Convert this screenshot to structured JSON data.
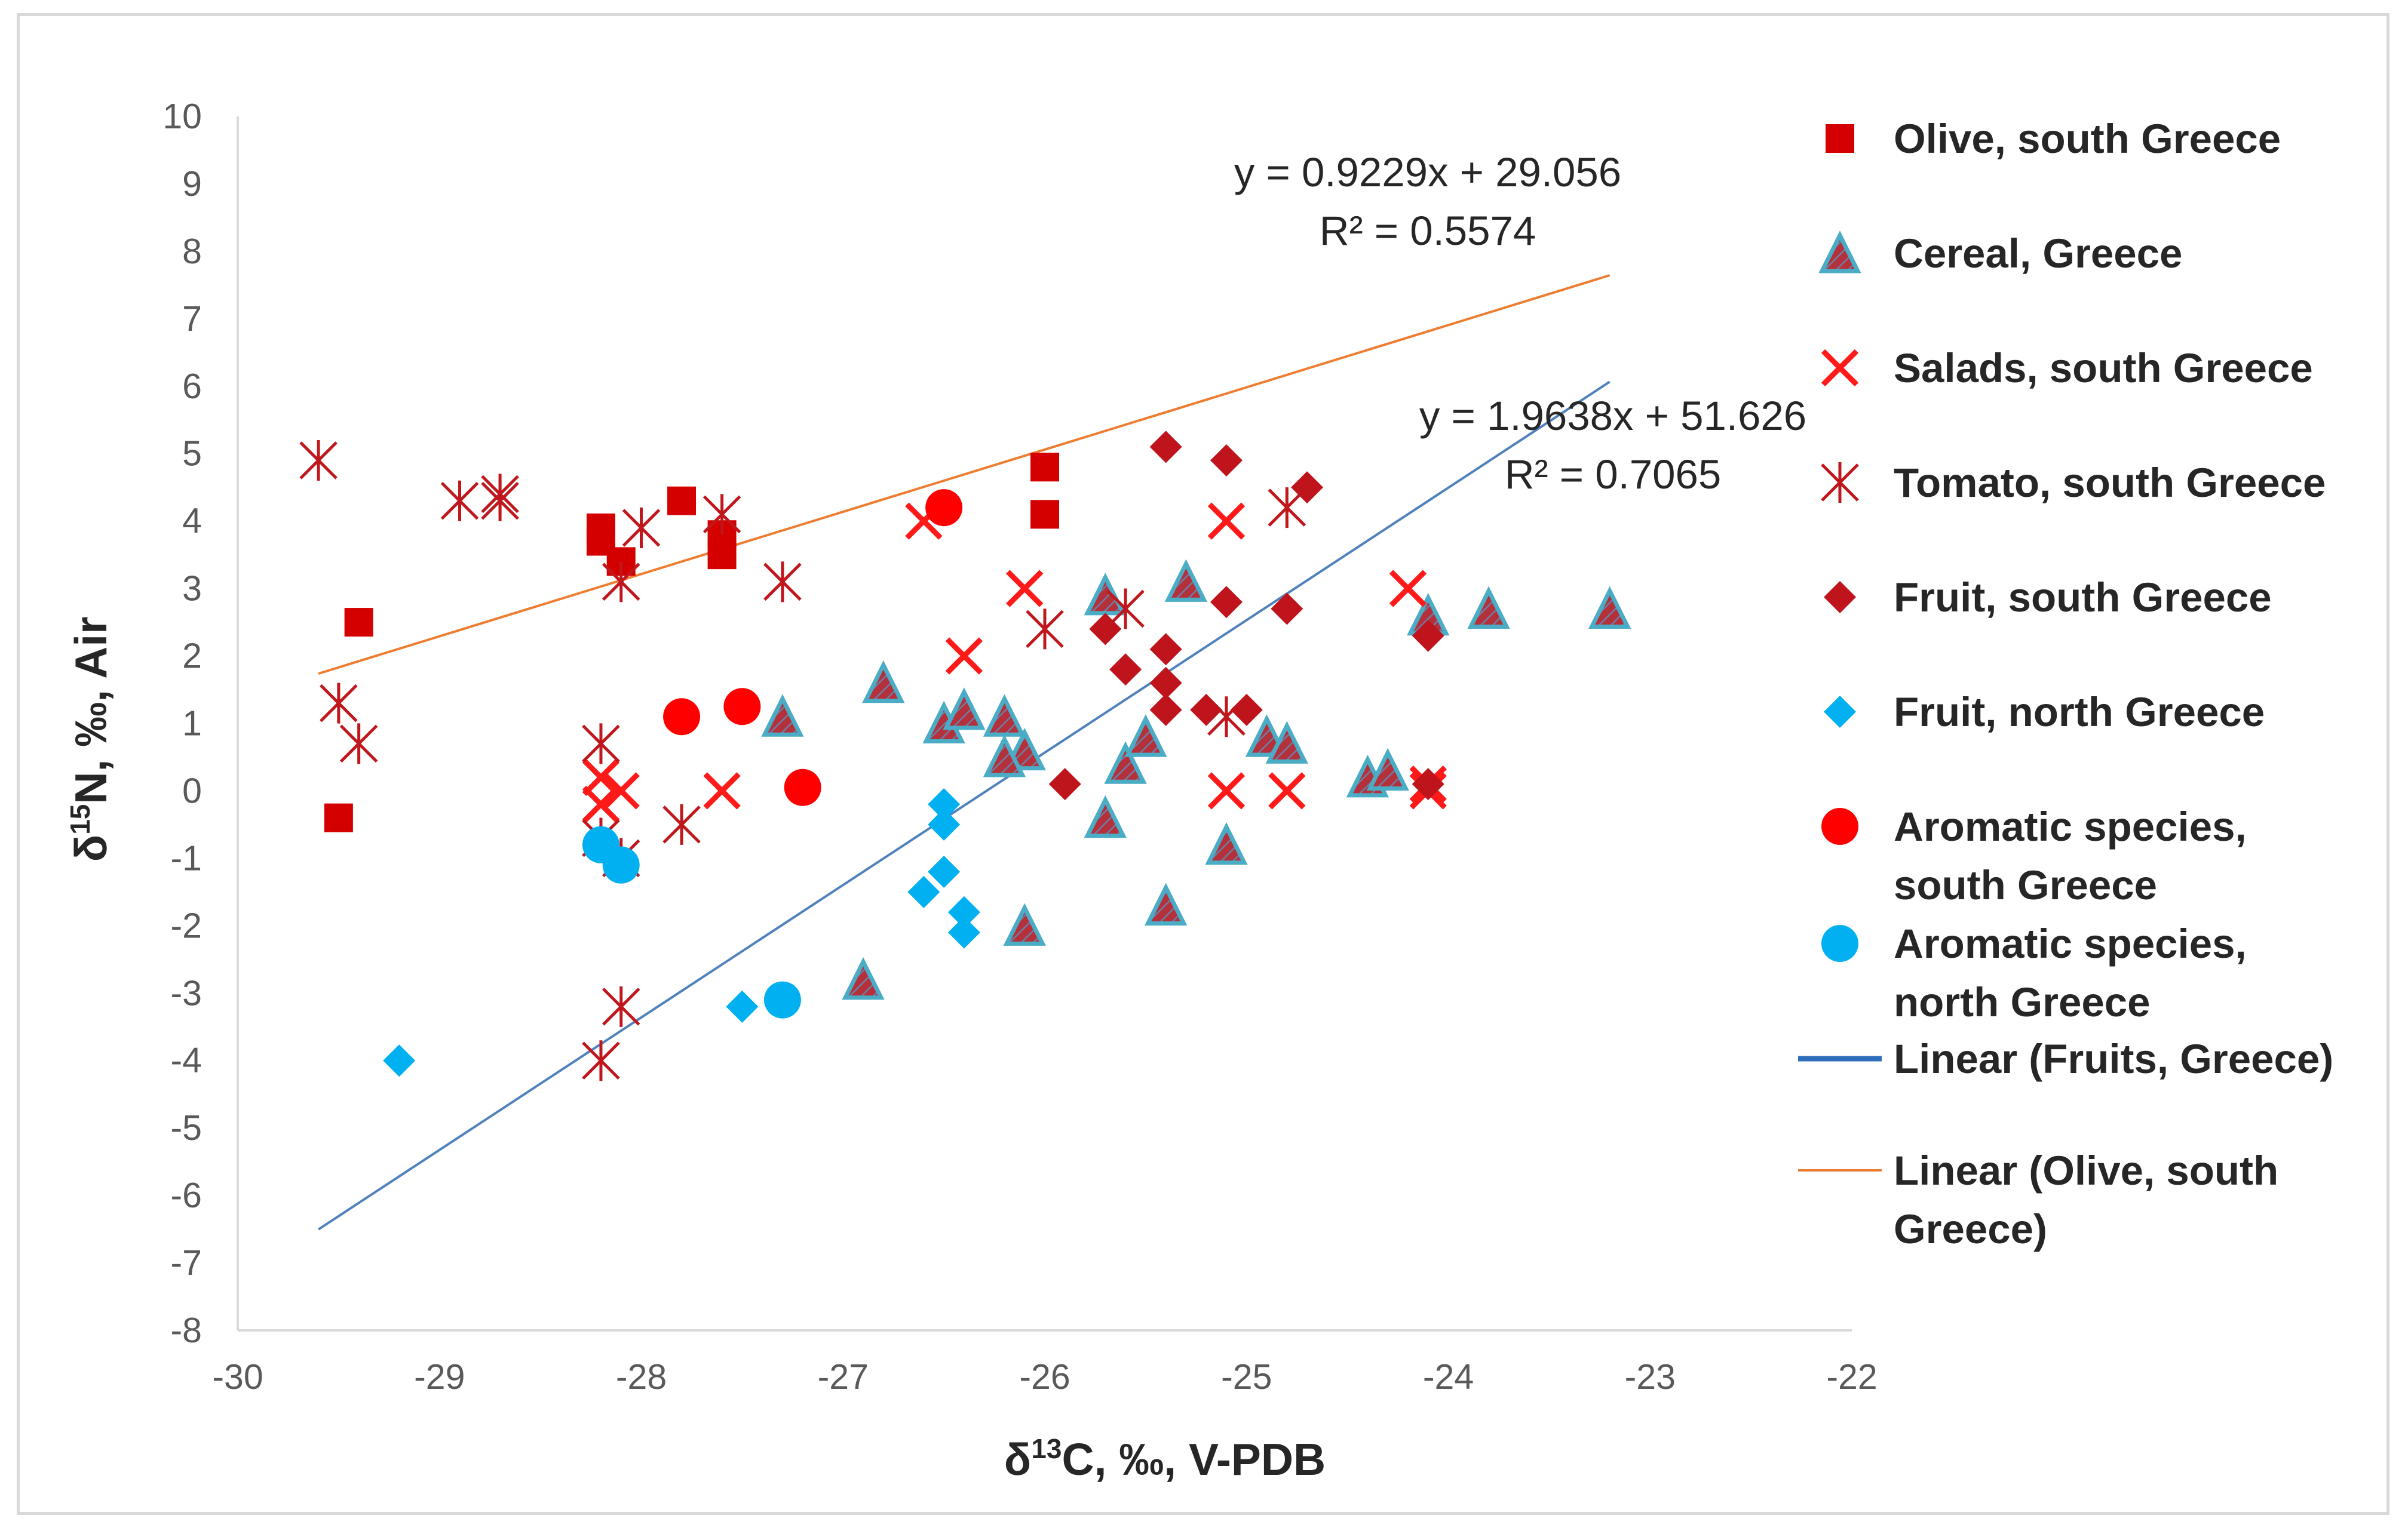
{
  "chart_data": {
    "type": "scatter",
    "title": "",
    "xlabel": "δ13C, ‰, V-PDB",
    "ylabel": "δ15N, ‰, Air",
    "xlim": [
      -30,
      -22
    ],
    "ylim": [
      -8,
      10
    ],
    "x_ticks": [
      "-30",
      "-29",
      "-28",
      "-27",
      "-26",
      "-25",
      "-24",
      "-23",
      "-22"
    ],
    "y_ticks": [
      "10",
      "9",
      "8",
      "7",
      "6",
      "5",
      "4",
      "3",
      "2",
      "1",
      "0",
      "-1",
      "-2",
      "-3",
      "-4",
      "-5",
      "-6",
      "-7",
      "-8"
    ],
    "grid": false,
    "legend_position": "right",
    "series": [
      {
        "name": "Olive, south Greece",
        "marker": "square",
        "color": "#d40000",
        "points": [
          [
            -29.5,
            -0.4
          ],
          [
            -29.4,
            2.5
          ],
          [
            -28.2,
            3.9
          ],
          [
            -28.2,
            3.7
          ],
          [
            -28.1,
            3.4
          ],
          [
            -27.8,
            4.3
          ],
          [
            -27.6,
            3.5
          ],
          [
            -27.6,
            3.8
          ],
          [
            -26.0,
            4.8
          ],
          [
            -26.0,
            4.1
          ]
        ]
      },
      {
        "name": "Cereal, Greece",
        "marker": "triangle",
        "color": "#b4313b",
        "edge": "#4bacc6",
        "points": [
          [
            -27.3,
            1.1
          ],
          [
            -26.8,
            1.6
          ],
          [
            -26.9,
            -2.8
          ],
          [
            -26.5,
            1.0
          ],
          [
            -26.4,
            1.2
          ],
          [
            -26.2,
            1.1
          ],
          [
            -26.1,
            0.6
          ],
          [
            -26.2,
            0.5
          ],
          [
            -26.1,
            -2.0
          ],
          [
            -25.7,
            2.9
          ],
          [
            -25.7,
            -0.4
          ],
          [
            -25.6,
            0.4
          ],
          [
            -25.5,
            0.8
          ],
          [
            -25.4,
            -1.7
          ],
          [
            -25.3,
            3.1
          ],
          [
            -25.1,
            -0.8
          ],
          [
            -24.9,
            0.8
          ],
          [
            -24.8,
            0.7
          ],
          [
            -24.4,
            0.2
          ],
          [
            -24.3,
            0.3
          ],
          [
            -24.1,
            2.6
          ],
          [
            -23.8,
            2.7
          ],
          [
            -23.2,
            2.7
          ]
        ]
      },
      {
        "name": "Salads, south Greece",
        "marker": "x",
        "color": "#ff1a1a",
        "points": [
          [
            -28.2,
            -0.2
          ],
          [
            -28.2,
            0.2
          ],
          [
            -28.1,
            0.0
          ],
          [
            -27.6,
            0.0
          ],
          [
            -26.6,
            4.0
          ],
          [
            -26.4,
            2.0
          ],
          [
            -26.1,
            3.0
          ],
          [
            -25.1,
            4.0
          ],
          [
            -25.1,
            0.0
          ],
          [
            -24.8,
            0.0
          ],
          [
            -24.2,
            3.0
          ],
          [
            -24.1,
            0.0
          ],
          [
            -24.1,
            0.1
          ]
        ]
      },
      {
        "name": "Tomato, south Greece",
        "marker": "asterisk",
        "color": "#c0171d",
        "points": [
          [
            -29.6,
            4.9
          ],
          [
            -29.5,
            1.3
          ],
          [
            -29.4,
            0.7
          ],
          [
            -28.9,
            4.3
          ],
          [
            -28.7,
            4.3
          ],
          [
            -28.7,
            4.4
          ],
          [
            -28.2,
            0.7
          ],
          [
            -28.2,
            -0.7
          ],
          [
            -28.2,
            -4.0
          ],
          [
            -28.1,
            3.1
          ],
          [
            -28.1,
            -1.0
          ],
          [
            -28.1,
            -3.2
          ],
          [
            -28.0,
            3.9
          ],
          [
            -27.8,
            -0.5
          ],
          [
            -27.6,
            4.1
          ],
          [
            -27.3,
            3.1
          ],
          [
            -26.0,
            2.4
          ],
          [
            -25.6,
            2.7
          ],
          [
            -25.1,
            1.1
          ],
          [
            -24.8,
            4.2
          ]
        ]
      },
      {
        "name": "Fruit, south Greece",
        "marker": "diamond",
        "color": "#c0141d",
        "points": [
          [
            -25.9,
            0.1
          ],
          [
            -25.7,
            2.4
          ],
          [
            -25.6,
            1.8
          ],
          [
            -25.4,
            5.1
          ],
          [
            -25.4,
            2.1
          ],
          [
            -25.4,
            1.6
          ],
          [
            -25.4,
            1.2
          ],
          [
            -25.2,
            1.2
          ],
          [
            -25.1,
            4.9
          ],
          [
            -25.1,
            2.8
          ],
          [
            -25.0,
            1.2
          ],
          [
            -24.8,
            2.7
          ],
          [
            -24.7,
            4.5
          ],
          [
            -24.1,
            2.3
          ],
          [
            -24.1,
            0.1
          ]
        ]
      },
      {
        "name": "Fruit, north Greece",
        "marker": "diamond",
        "color": "#00b0f0",
        "points": [
          [
            -29.2,
            -4.0
          ],
          [
            -27.5,
            -3.2
          ],
          [
            -26.6,
            -1.5
          ],
          [
            -26.5,
            -1.2
          ],
          [
            -26.5,
            -0.5
          ],
          [
            -26.5,
            -0.2
          ],
          [
            -26.4,
            -1.8
          ],
          [
            -26.4,
            -2.1
          ]
        ]
      },
      {
        "name": "Aromatic species, south Greece",
        "marker": "circle",
        "color": "#ff0000",
        "points": [
          [
            -27.8,
            1.1
          ],
          [
            -27.5,
            1.25
          ],
          [
            -27.2,
            0.05
          ],
          [
            -26.5,
            4.2
          ]
        ]
      },
      {
        "name": "Aromatic species, north Greece",
        "marker": "circle",
        "color": "#00b0f0",
        "points": [
          [
            -28.2,
            -0.8
          ],
          [
            -28.1,
            -1.1
          ],
          [
            -27.3,
            -3.1
          ]
        ]
      }
    ],
    "trendlines": [
      {
        "name": "Linear (Fruits, Greece)",
        "color": "#4f81bd",
        "slope": 1.9638,
        "intercept": 51.626,
        "x_range": [
          -29.6,
          -23.2
        ],
        "equation": "y = 1.9638x + 51.626",
        "r2": "R² = 0.7065"
      },
      {
        "name": "Linear (Olive, south Greece)",
        "color": "#ed7d31",
        "slope": 0.9229,
        "intercept": 29.056,
        "x_range": [
          -29.6,
          -23.2
        ],
        "equation": "y = 0.9229x + 29.056",
        "r2": "R² = 0.5574"
      }
    ],
    "legend": [
      {
        "marker": "square",
        "lines": [
          "Olive, south Greece"
        ]
      },
      {
        "marker": "triangle",
        "lines": [
          "Cereal, Greece"
        ]
      },
      {
        "marker": "x",
        "lines": [
          "Salads, south Greece"
        ]
      },
      {
        "marker": "asterisk",
        "lines": [
          "Tomato, south Greece"
        ]
      },
      {
        "marker": "diamond-red",
        "lines": [
          "Fruit, south Greece"
        ]
      },
      {
        "marker": "diamond-blue",
        "lines": [
          "Fruit, north Greece"
        ]
      },
      {
        "marker": "circle-red",
        "lines": [
          "Aromatic species,",
          "south Greece"
        ]
      },
      {
        "marker": "circle-blue",
        "lines": [
          "Aromatic species,",
          "north Greece"
        ]
      },
      {
        "marker": "line-blue",
        "lines": [
          "Linear (Fruits, Greece)"
        ]
      },
      {
        "marker": "line-orange",
        "lines": [
          "Linear (Olive, south",
          "Greece)"
        ]
      }
    ]
  }
}
